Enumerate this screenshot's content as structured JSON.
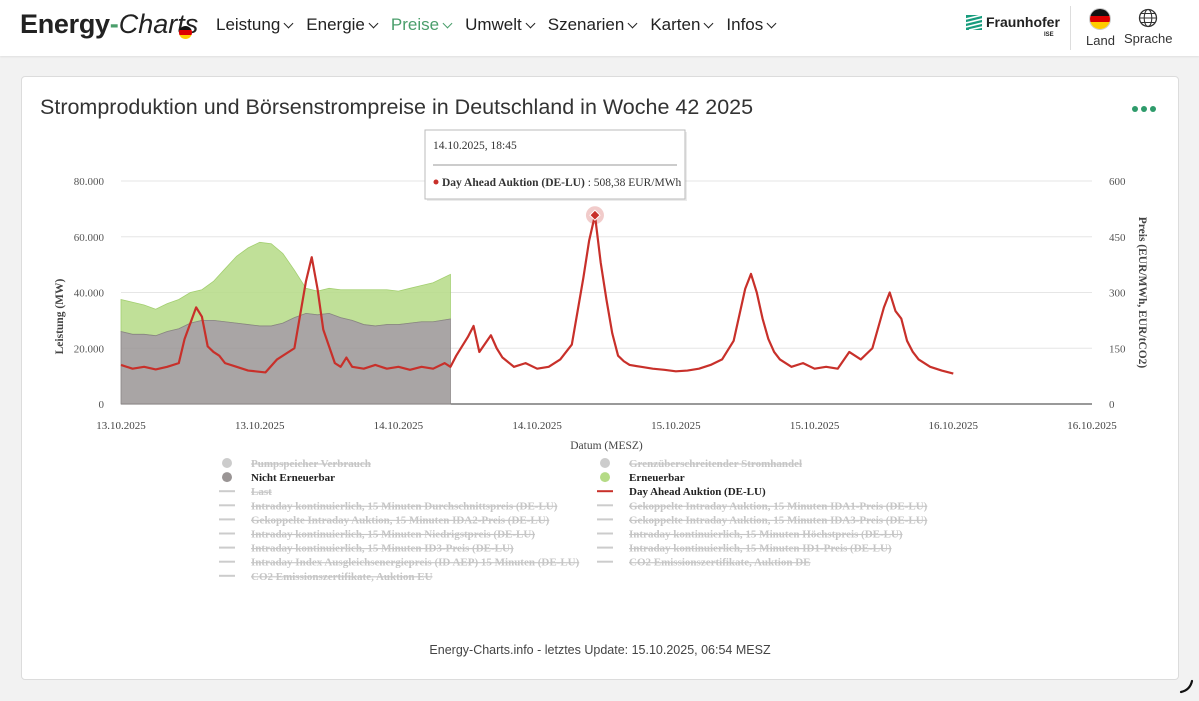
{
  "header": {
    "logo": {
      "part1": "Energy",
      "part2": "-",
      "part3": "Charts"
    },
    "nav": [
      {
        "label": "Leistung",
        "active": false
      },
      {
        "label": "Energie",
        "active": false
      },
      {
        "label": "Preise",
        "active": true
      },
      {
        "label": "Umwelt",
        "active": false
      },
      {
        "label": "Szenarien",
        "active": false
      },
      {
        "label": "Karten",
        "active": false
      },
      {
        "label": "Infos",
        "active": false
      }
    ],
    "fraunhofer": {
      "name": "Fraunhofer",
      "sub": "ISE"
    },
    "country_label": "Land",
    "language_label": "Sprache",
    "accent_color": "#4a9e6b"
  },
  "chart": {
    "title": "Stromproduktion und Börsenstrompreise in Deutschland in Woche 42 2025",
    "footer": "Energy-Charts.info - letztes Update: 15.10.2025, 06:54 MESZ"
  },
  "tooltip": {
    "time": "14.10.2025, 18:45",
    "series": "Day Ahead Auktion (DE-LU)",
    "value": ": 508,38 EUR/MWh"
  },
  "chart_data": {
    "type": "area",
    "xlabel": "Datum (MESZ)",
    "ylabel": "Leistung (MW)",
    "ylabel_right": "Preis (EUR/MWh, EUR/tCO2)",
    "ylim": [
      0,
      80000
    ],
    "ylim_right": [
      0,
      600
    ],
    "y_ticks": [
      "0",
      "20.000",
      "40.000",
      "60.000",
      "80.000"
    ],
    "y_ticks_right": [
      "0",
      "150",
      "300",
      "450",
      "600"
    ],
    "x_ticks": [
      "13.10.2025",
      "13.10.2025",
      "14.10.2025",
      "14.10.2025",
      "15.10.2025",
      "15.10.2025",
      "16.10.2025",
      "16.10.2025"
    ],
    "x_hours": [
      0,
      24,
      48,
      72,
      96,
      120,
      144,
      168
    ],
    "grid": true,
    "legend_placement": "bottom",
    "series": [
      {
        "name": "Nicht Erneuerbar",
        "color": "#9a9595",
        "axis": "left",
        "x": [
          0,
          2,
          4,
          6,
          8,
          10,
          12,
          14,
          16,
          18,
          20,
          22,
          24,
          26,
          28,
          30,
          32,
          34,
          36,
          38,
          40,
          42,
          44,
          46,
          48,
          50,
          52,
          54,
          57
        ],
        "values": [
          26000,
          25000,
          25000,
          24500,
          26000,
          27000,
          29000,
          30000,
          30000,
          29500,
          29000,
          28500,
          28000,
          28000,
          29000,
          31000,
          32500,
          32000,
          32500,
          31000,
          30000,
          28500,
          28000,
          28500,
          28500,
          29000,
          29500,
          29500,
          30500
        ]
      },
      {
        "name": "Erneuerbar",
        "color": "#b5db86",
        "axis": "left",
        "x": [
          0,
          2,
          4,
          6,
          8,
          10,
          12,
          14,
          16,
          18,
          20,
          22,
          24,
          26,
          28,
          30,
          32,
          34,
          36,
          38,
          40,
          42,
          44,
          46,
          48,
          50,
          52,
          54,
          57
        ],
        "values": [
          11500,
          11500,
          10500,
          9500,
          10000,
          10500,
          11000,
          11000,
          14000,
          19000,
          24000,
          27500,
          30000,
          29500,
          25000,
          17000,
          9000,
          8500,
          9000,
          10000,
          11000,
          12500,
          13000,
          12500,
          12000,
          12500,
          13000,
          14000,
          16000
        ]
      },
      {
        "name": "Day Ahead Auktion (DE-LU)",
        "color": "#c8302a",
        "axis": "right",
        "x": [
          0,
          2,
          4,
          6,
          8,
          10,
          11,
          13,
          14,
          15,
          16,
          17,
          18,
          20,
          22,
          25,
          27,
          30,
          32,
          33,
          34,
          35,
          36,
          37,
          38,
          39,
          40,
          42,
          44,
          46,
          48,
          50,
          52,
          54,
          56,
          57,
          58,
          60,
          61,
          62,
          64,
          65,
          66,
          68,
          70,
          72,
          74,
          76,
          78,
          80,
          81,
          82,
          83,
          84,
          85,
          86,
          87,
          88,
          90,
          92,
          94,
          96,
          98,
          100,
          102,
          104,
          106,
          108,
          109,
          110,
          111,
          112,
          113,
          114,
          116,
          118,
          120,
          122,
          124,
          126,
          128,
          130,
          132,
          133,
          134,
          135,
          136,
          137,
          138,
          140,
          142,
          144
        ],
        "values": [
          105,
          95,
          100,
          93,
          100,
          110,
          175,
          260,
          235,
          155,
          140,
          130,
          110,
          100,
          90,
          85,
          120,
          150,
          330,
          395,
          310,
          200,
          155,
          110,
          100,
          125,
          100,
          95,
          105,
          95,
          100,
          92,
          100,
          95,
          110,
          100,
          130,
          180,
          210,
          140,
          185,
          150,
          125,
          100,
          110,
          95,
          100,
          120,
          160,
          340,
          440,
          508,
          380,
          280,
          190,
          130,
          115,
          105,
          100,
          95,
          92,
          88,
          90,
          95,
          105,
          120,
          170,
          310,
          350,
          300,
          230,
          175,
          140,
          120,
          100,
          110,
          95,
          100,
          95,
          140,
          120,
          150,
          260,
          300,
          250,
          230,
          170,
          140,
          120,
          100,
          90,
          82
        ]
      }
    ]
  },
  "legend": {
    "left": [
      {
        "label": "Pumpspeicher Verbrauch",
        "marker": "dot",
        "color": "#cccccc",
        "active": false
      },
      {
        "label": "Nicht Erneuerbar",
        "marker": "dot",
        "color": "#9a9595",
        "active": true
      },
      {
        "label": "Last",
        "marker": "line",
        "color": "#cccccc",
        "active": false
      },
      {
        "label": "Intraday kontinuierlich, 15 Minuten Durchschnittspreis (DE-LU)",
        "marker": "line",
        "color": "#cccccc",
        "active": false
      },
      {
        "label": "Gekoppelte Intraday Auktion, 15 Minuten IDA2-Preis (DE-LU)",
        "marker": "line",
        "color": "#cccccc",
        "active": false
      },
      {
        "label": "Intraday kontinuierlich, 15 Minuten Niedrigstpreis (DE-LU)",
        "marker": "line",
        "color": "#cccccc",
        "active": false
      },
      {
        "label": "Intraday kontinuierlich, 15 Minuten ID3-Preis (DE-LU)",
        "marker": "line",
        "color": "#cccccc",
        "active": false
      },
      {
        "label": "Intraday Index Ausgleichsenergiepreis (ID AEP) 15 Minuten (DE-LU)",
        "marker": "line",
        "color": "#cccccc",
        "active": false
      },
      {
        "label": "CO2 Emissionszertifikate, Auktion EU",
        "marker": "line",
        "color": "#cccccc",
        "active": false
      }
    ],
    "right": [
      {
        "label": "Grenzüberschreitender Stromhandel",
        "marker": "dot",
        "color": "#cccccc",
        "active": false
      },
      {
        "label": "Erneuerbar",
        "marker": "dot",
        "color": "#b5db86",
        "active": true
      },
      {
        "label": "Day Ahead Auktion (DE-LU)",
        "marker": "line",
        "color": "#c8302a",
        "active": true
      },
      {
        "label": "Gekoppelte Intraday Auktion, 15 Minuten IDA1-Preis (DE-LU)",
        "marker": "line",
        "color": "#cccccc",
        "active": false
      },
      {
        "label": "Gekoppelte Intraday Auktion, 15 Minuten IDA3-Preis (DE-LU)",
        "marker": "line",
        "color": "#cccccc",
        "active": false
      },
      {
        "label": "Intraday kontinuierlich, 15 Minuten Höchstpreis (DE-LU)",
        "marker": "line",
        "color": "#cccccc",
        "active": false
      },
      {
        "label": "Intraday kontinuierlich, 15 Minuten ID1-Preis (DE-LU)",
        "marker": "line",
        "color": "#cccccc",
        "active": false
      },
      {
        "label": "CO2 Emissionszertifikate, Auktion DE",
        "marker": "line",
        "color": "#cccccc",
        "active": false
      }
    ]
  }
}
